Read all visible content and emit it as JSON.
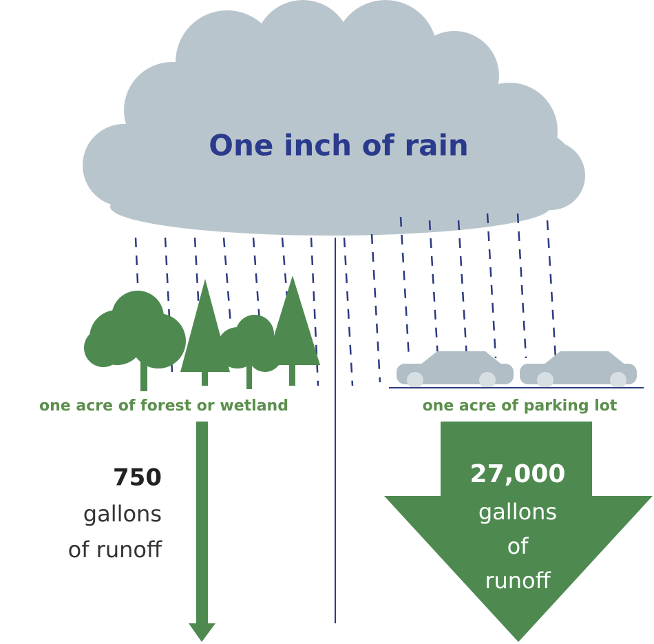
{
  "title": "One inch of rain",
  "left": {
    "label": "one acre of forest or wetland",
    "amount": "750",
    "lines": [
      "gallons",
      "of runoff"
    ]
  },
  "right": {
    "label": "one acre of parking lot",
    "amount": "27,000",
    "lines": [
      "gallons",
      "of",
      "runoff"
    ]
  }
}
